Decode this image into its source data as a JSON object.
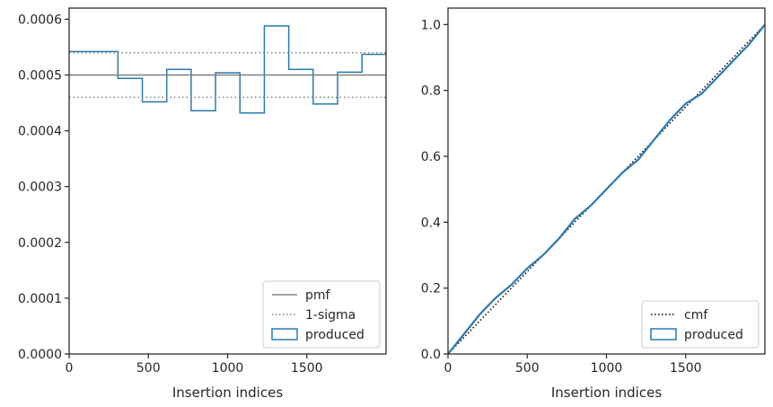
{
  "chart_data": [
    {
      "type": "histogram-step",
      "xlabel": "Insertion indices",
      "ylabel": "",
      "xlim": [
        0,
        2000
      ],
      "ylim": [
        0,
        0.00062
      ],
      "xticks": [
        0,
        500,
        1000,
        1500
      ],
      "yticks": [
        0,
        0.0001,
        0.0002,
        0.0003,
        0.0004,
        0.0005,
        0.0006
      ],
      "ytick_labels": [
        "0.0000",
        "0.0001",
        "0.0002",
        "0.0003",
        "0.0004",
        "0.0005",
        "0.0006"
      ],
      "bin_edges": [
        0,
        154,
        308,
        462,
        616,
        770,
        924,
        1078,
        1232,
        1386,
        1540,
        1694,
        1848,
        2002
      ],
      "series": [
        {
          "name": "produced",
          "color": "#2a7ab0",
          "style": "step",
          "values": [
            0.000542,
            0.000542,
            0.000494,
            0.000452,
            0.00051,
            0.000436,
            0.000504,
            0.000432,
            0.000588,
            0.00051,
            0.000448,
            0.000505,
            0.000537
          ]
        },
        {
          "name": "pmf",
          "color": "#808080",
          "style": "solid-hline",
          "value": 0.0005
        },
        {
          "name": "1-sigma",
          "color": "#808080",
          "style": "dotted-hlines",
          "values": [
            0.00054,
            0.00046
          ]
        }
      ],
      "legend": {
        "position": "lower-right",
        "entries": [
          "pmf",
          "1-sigma",
          "produced"
        ]
      }
    },
    {
      "type": "line",
      "xlabel": "Insertion indices",
      "ylabel": "",
      "xlim": [
        0,
        2000
      ],
      "ylim": [
        0,
        1.05
      ],
      "xticks": [
        0,
        500,
        1000,
        1500
      ],
      "yticks": [
        0,
        0.2,
        0.4,
        0.6,
        0.8,
        1.0
      ],
      "ytick_labels": [
        "0.0",
        "0.2",
        "0.4",
        "0.6",
        "0.8",
        "1.0"
      ],
      "series": [
        {
          "name": "cmf",
          "color": "#000000",
          "style": "dotted",
          "x": [
            0,
            2000
          ],
          "y": [
            0,
            1.0
          ]
        },
        {
          "name": "produced",
          "color": "#2a7ab0",
          "style": "solid",
          "x": [
            0,
            100,
            200,
            300,
            400,
            500,
            600,
            700,
            800,
            900,
            1000,
            1100,
            1200,
            1300,
            1400,
            1500,
            1600,
            1700,
            1800,
            1900,
            2000
          ],
          "y": [
            0,
            0.06,
            0.12,
            0.17,
            0.21,
            0.26,
            0.3,
            0.35,
            0.41,
            0.45,
            0.5,
            0.55,
            0.59,
            0.65,
            0.71,
            0.76,
            0.79,
            0.84,
            0.89,
            0.94,
            1.0
          ]
        }
      ],
      "legend": {
        "position": "lower-right",
        "entries": [
          "cmf",
          "produced"
        ]
      }
    }
  ]
}
